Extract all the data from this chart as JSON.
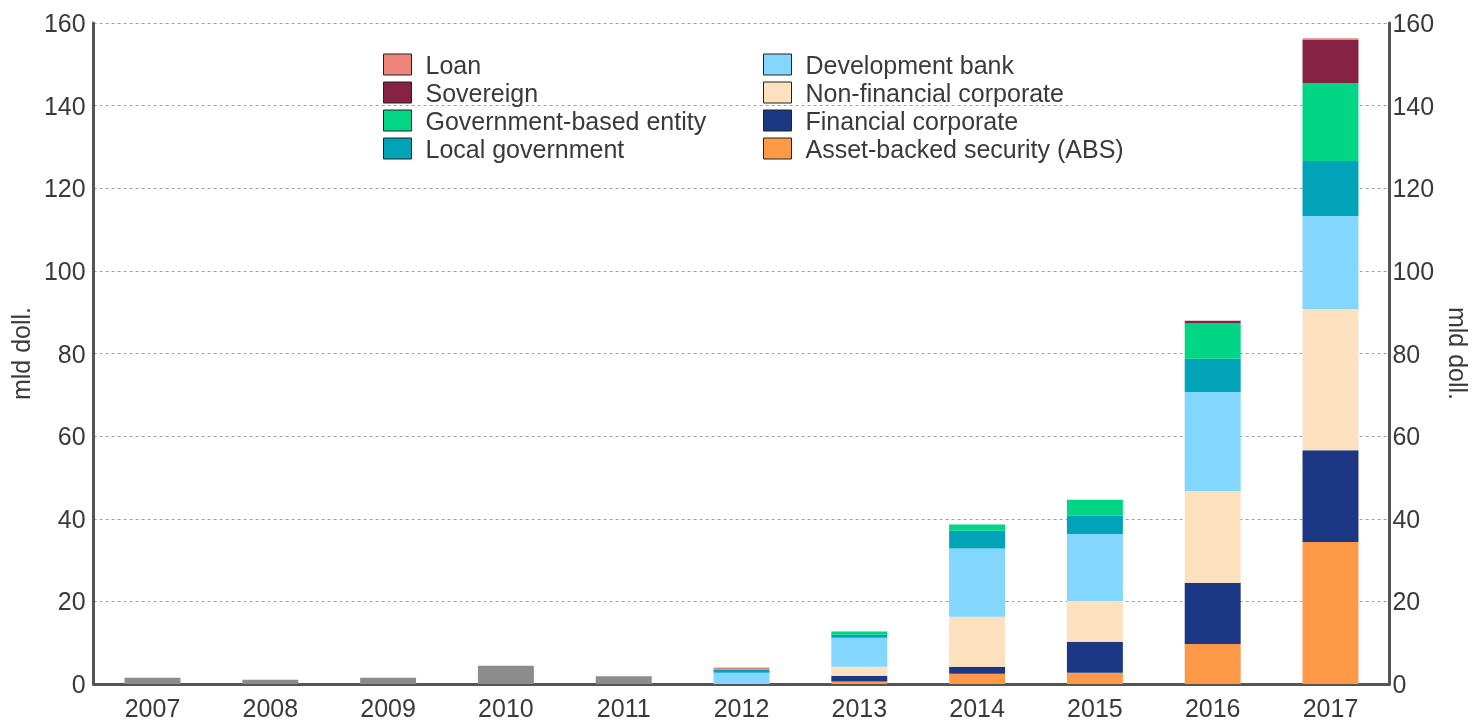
{
  "chart_data": {
    "type": "bar",
    "stacked": true,
    "categories": [
      "2007",
      "2008",
      "2009",
      "2010",
      "2011",
      "2012",
      "2013",
      "2014",
      "2015",
      "2016",
      "2017"
    ],
    "series": [
      {
        "color": "#8c8c8c",
        "values": [
          1.5,
          1.0,
          1.5,
          4.4,
          1.9,
          null,
          null,
          null,
          null,
          null,
          null
        ]
      },
      {
        "name": "Asset-backed security (ABS)",
        "color": "#fe9a47",
        "values": [
          null,
          null,
          null,
          null,
          null,
          null,
          0.6,
          2.5,
          2.7,
          9.7,
          34.4
        ]
      },
      {
        "name": "Financial corporate",
        "color": "#1c3884",
        "values": [
          null,
          null,
          null,
          null,
          null,
          null,
          1.4,
          1.7,
          7.5,
          14.8,
          22.2
        ]
      },
      {
        "name": "Non-financial corporate",
        "color": "#fde1bf",
        "values": [
          null,
          null,
          null,
          null,
          null,
          null,
          2.2,
          12.1,
          9.9,
          22.2,
          34.2
        ]
      },
      {
        "name": "Development bank",
        "color": "#83d6fd",
        "values": [
          null,
          null,
          null,
          null,
          null,
          2.7,
          7.0,
          16.5,
          16.2,
          24.0,
          22.5
        ]
      },
      {
        "name": "Local government",
        "color": "#00a3b8",
        "values": [
          null,
          null,
          null,
          null,
          null,
          0.7,
          0.7,
          4.3,
          4.4,
          8.0,
          13.3
        ]
      },
      {
        "name": "Government-based entity",
        "color": "#00d685",
        "values": [
          null,
          null,
          null,
          null,
          null,
          null,
          0.8,
          1.5,
          3.9,
          8.7,
          18.9
        ]
      },
      {
        "name": "Sovereign",
        "color": "#862345",
        "values": [
          null,
          null,
          null,
          null,
          null,
          null,
          null,
          null,
          null,
          0.5,
          10.4
        ]
      },
      {
        "name": "Loan",
        "color": "#ee857b",
        "values": [
          null,
          null,
          null,
          null,
          null,
          0.6,
          null,
          null,
          null,
          null,
          0.4
        ]
      }
    ],
    "ylabel": "mld doll.",
    "y2label": "mld doll.",
    "ylim": [
      0,
      160
    ],
    "yticks": [
      0,
      20,
      40,
      60,
      80,
      100,
      120,
      140,
      160
    ],
    "y2lim": [
      0,
      160
    ],
    "y2ticks": [
      0,
      20,
      40,
      60,
      80,
      100,
      120,
      140,
      160
    ],
    "grid": "y",
    "legend": "top"
  }
}
